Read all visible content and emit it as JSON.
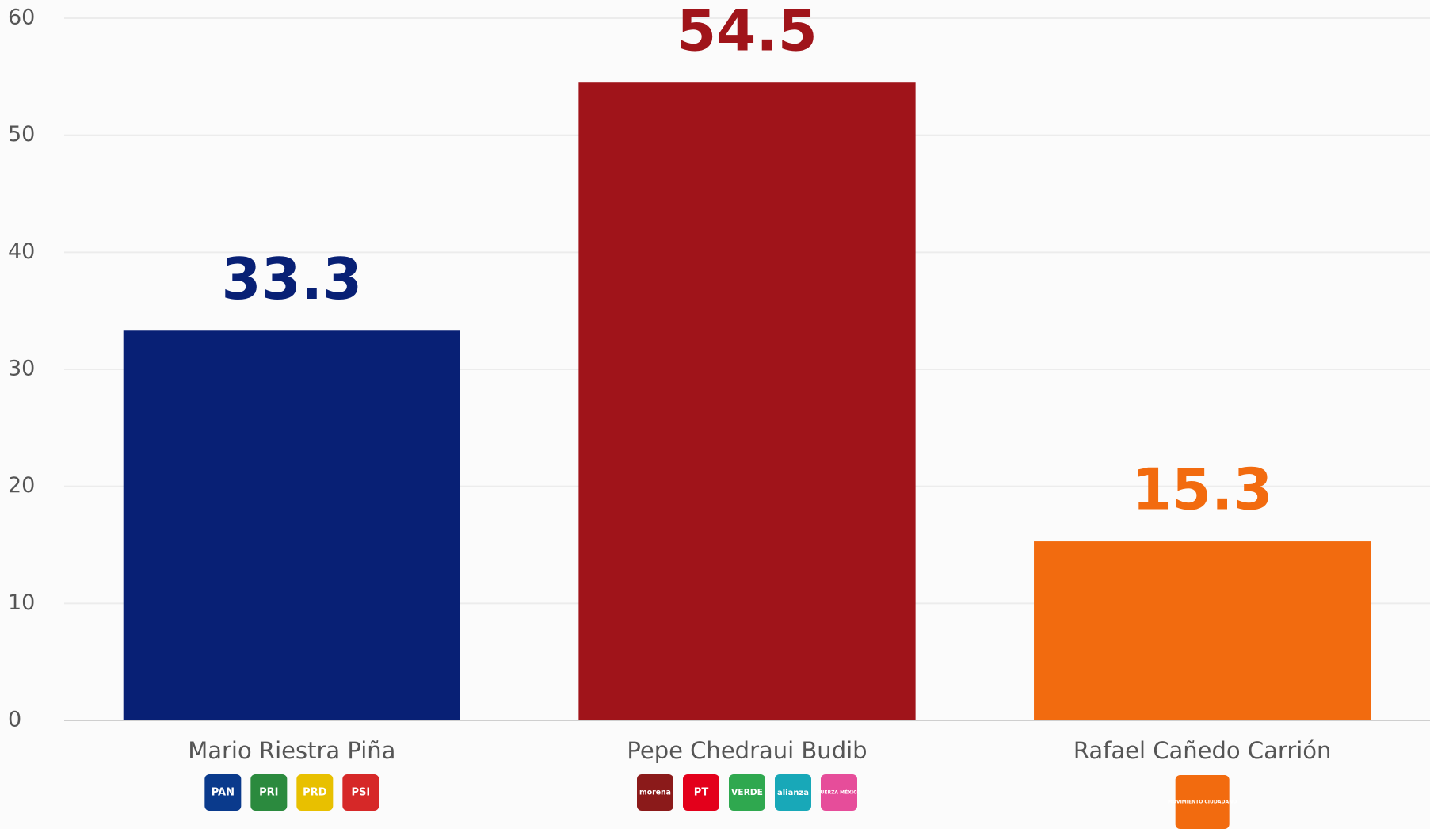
{
  "chart_data": {
    "type": "bar",
    "categories": [
      "Mario Riestra Piña",
      "Pepe Chedraui Budib",
      "Rafael Cañedo Carrión"
    ],
    "values": [
      33.3,
      54.5,
      15.3
    ],
    "colors": [
      "#082075",
      "#a0141a",
      "#f26b0f"
    ],
    "ylim": [
      0,
      60
    ],
    "yticks": [
      0,
      10,
      20,
      30,
      40,
      50,
      60
    ],
    "grid": true,
    "logos": [
      [
        {
          "label": "PAN",
          "color": "#0a3a8c"
        },
        {
          "label": "PRI",
          "color": "#2b8a3e"
        },
        {
          "label": "PRD",
          "color": "#e8c000"
        },
        {
          "label": "PSI",
          "color": "#d62828"
        }
      ],
      [
        {
          "label": "morena",
          "color": "#8b1a1a"
        },
        {
          "label": "PT",
          "color": "#e3001b"
        },
        {
          "label": "VERDE",
          "color": "#2fa84f"
        },
        {
          "label": "alianza",
          "color": "#18a8b8"
        },
        {
          "label": "FUERZA MÉXICO",
          "color": "#e64d9a"
        }
      ],
      [
        {
          "label": "MOVIMIENTO CIUDADANO",
          "color": "#f26b0f"
        }
      ]
    ]
  }
}
